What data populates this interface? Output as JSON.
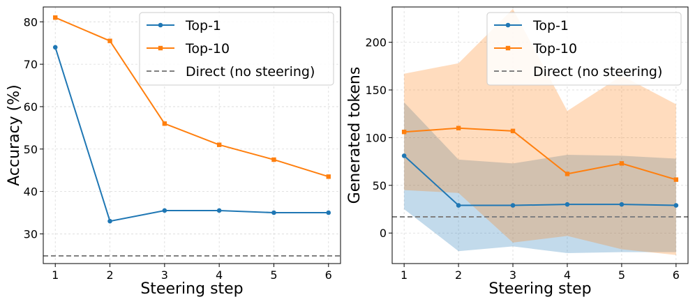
{
  "colors": {
    "top1": "#1f77b4",
    "top10": "#ff7f0e",
    "direct": "#808080",
    "grid": "#d9d9d9"
  },
  "chart_data": [
    {
      "type": "line",
      "x": [
        1,
        2,
        3,
        4,
        5,
        6
      ],
      "xlabel": "Steering step",
      "ylabel": "Accuracy (%)",
      "xlim": [
        0.78,
        6.22
      ],
      "ylim": [
        23,
        83.5
      ],
      "xticks": [
        "1",
        "2",
        "3",
        "4",
        "5",
        "6"
      ],
      "yticks": [
        "30",
        "40",
        "50",
        "60",
        "70",
        "80"
      ],
      "grid": true,
      "legend_position": "top-right",
      "series": [
        {
          "name": "Top-1",
          "marker": "circle",
          "values": [
            74,
            33,
            35.5,
            35.5,
            35,
            35
          ]
        },
        {
          "name": "Top-10",
          "marker": "square",
          "values": [
            81,
            75.5,
            56,
            51,
            47.5,
            43.5
          ]
        }
      ],
      "reference_line": {
        "name": "Direct (no steering)",
        "value": 24.8
      }
    },
    {
      "type": "line",
      "x": [
        1,
        2,
        3,
        4,
        5,
        6
      ],
      "xlabel": "Steering step",
      "ylabel": "Generated tokens",
      "xlim": [
        0.78,
        6.22
      ],
      "ylim": [
        -32,
        237
      ],
      "xticks": [
        "1",
        "2",
        "3",
        "4",
        "5",
        "6"
      ],
      "yticks": [
        "0",
        "50",
        "100",
        "150",
        "200"
      ],
      "grid": true,
      "legend_position": "top-right",
      "series": [
        {
          "name": "Top-1",
          "marker": "circle",
          "values": [
            81,
            29,
            29,
            30,
            30,
            29
          ],
          "band_lower": [
            25,
            -19,
            -14,
            -21,
            -20,
            -20
          ],
          "band_upper": [
            137,
            77,
            73,
            82,
            81,
            78
          ]
        },
        {
          "name": "Top-10",
          "marker": "square",
          "values": [
            106,
            110,
            107,
            62,
            73,
            56
          ],
          "band_lower": [
            45,
            42,
            -10,
            -3,
            -17,
            -23
          ],
          "band_upper": [
            167,
            178,
            235,
            128,
            165,
            135
          ]
        }
      ],
      "reference_line": {
        "name": "Direct (no steering)",
        "value": 17
      }
    }
  ]
}
